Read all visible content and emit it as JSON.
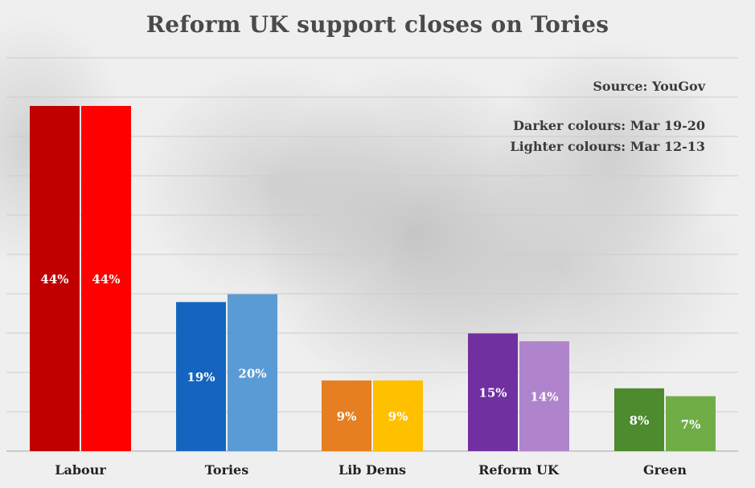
{
  "chart_data": {
    "type": "bar",
    "title": "Reform UK support closes on Tories",
    "source": "Source: YouGov",
    "legend": [
      {
        "text": "Darker colours: Mar 19-20"
      },
      {
        "text": "Lighter colours: Mar 12-13"
      }
    ],
    "categories": [
      "Labour",
      "Tories",
      "Lib Dems",
      "Reform UK",
      "Green"
    ],
    "series": [
      {
        "values": [
          44,
          19,
          9,
          15,
          8
        ],
        "labels": [
          "44%",
          "19%",
          "9%",
          "15%",
          "8%"
        ]
      },
      {
        "values": [
          44,
          20,
          9,
          14,
          7
        ],
        "labels": [
          "44%",
          "20%",
          "9%",
          "14%",
          "7%"
        ]
      }
    ],
    "colors": {
      "dark": [
        "#c00000",
        "#1565c0",
        "#e67e22",
        "#7030a0",
        "#4e8a2e"
      ],
      "light": [
        "#ff0000",
        "#5b9bd5",
        "#ffc000",
        "#b084cc",
        "#70ad47"
      ],
      "title": "#4a4a4a",
      "grid": "#cccccc"
    },
    "ylim": [
      0,
      44
    ],
    "grid": true,
    "xlabel": "",
    "ylabel": ""
  }
}
